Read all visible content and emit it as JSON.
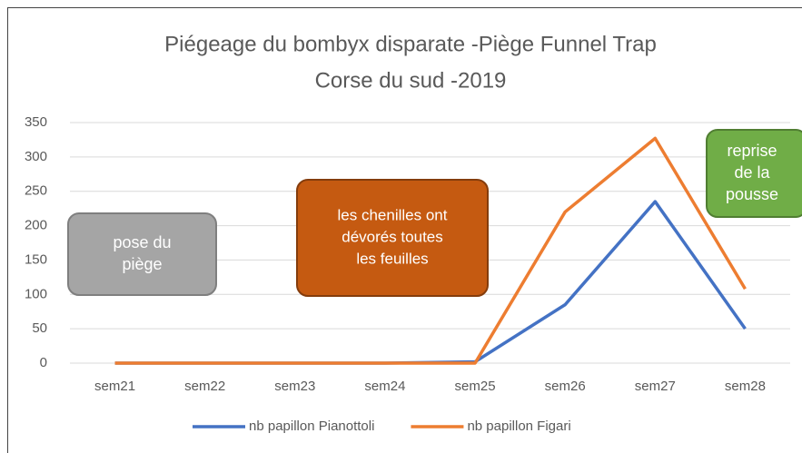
{
  "chart_data": {
    "type": "line",
    "title": [
      "Piégeage du bombyx disparate -Piège Funnel Trap",
      "Corse du sud -2019"
    ],
    "categories": [
      "sem21",
      "sem22",
      "sem23",
      "sem24",
      "sem25",
      "sem26",
      "sem27",
      "sem28"
    ],
    "series": [
      {
        "name": "nb papillon Pianottoli",
        "color": "#4472c4",
        "values": [
          0,
          0,
          0,
          0,
          2,
          85,
          235,
          50
        ]
      },
      {
        "name": "nb papillon Figari",
        "color": "#ed7d31",
        "values": [
          0,
          0,
          0,
          0,
          0,
          220,
          327,
          108
        ]
      }
    ],
    "ylim": [
      0,
      350
    ],
    "yticks": [
      0,
      50,
      100,
      150,
      200,
      250,
      300,
      350
    ],
    "grid": true,
    "legend": "bottom",
    "annotations": [
      {
        "lines": [
          "pose du",
          "piège"
        ],
        "color": "#a5a5a5"
      },
      {
        "lines": [
          "les chenilles ont",
          "dévorés toutes",
          "les feuilles"
        ],
        "color": "#c55a11"
      },
      {
        "lines": [
          "reprise",
          "de la",
          "pousse"
        ],
        "color": "#70ad47"
      }
    ]
  }
}
